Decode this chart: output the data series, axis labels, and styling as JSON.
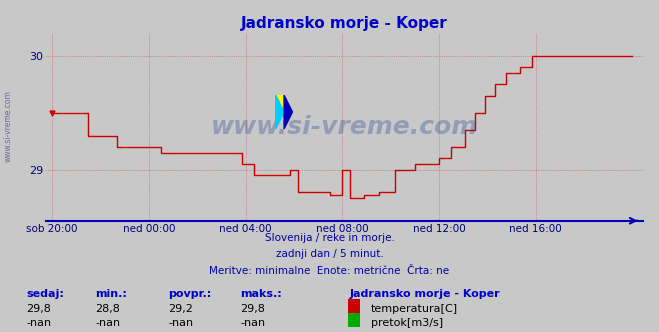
{
  "title": "Jadransko morje - Koper",
  "title_color": "#0000cc",
  "bg_color": "#c8c8c8",
  "plot_bg_color": "#c8c8c8",
  "line_color": "#cc0000",
  "axis_color": "#0000bb",
  "grid_color": "#cc0000",
  "xlabel_color": "#000080",
  "ylim": [
    28.55,
    30.2
  ],
  "xlim": [
    -3,
    293
  ],
  "x_ticks": [
    0,
    48,
    96,
    144,
    192,
    240
  ],
  "xlim_labels": [
    "sob 20:00",
    "ned 00:00",
    "ned 04:00",
    "ned 08:00",
    "ned 12:00",
    "ned 16:00"
  ],
  "yticks": [
    29.0,
    30.0
  ],
  "ytick_labels": [
    "29",
    "30"
  ],
  "watermark": "www.si-vreme.com",
  "watermark_color": "#1a3a8a",
  "watermark_alpha": 0.3,
  "info_line1": "Slovenija / reke in morje.",
  "info_line2": "zadnji dan / 5 minut.",
  "info_line3": "Meritve: minimalne  Enote: metrične  Črta: ne",
  "info_color": "#0000aa",
  "table_headers": [
    "sedaj:",
    "min.:",
    "povpr.:",
    "maks.:"
  ],
  "table_values_temp": [
    "29,8",
    "28,8",
    "29,2",
    "29,8"
  ],
  "table_values_pretok": [
    "-nan",
    "-nan",
    "-nan",
    "-nan"
  ],
  "legend_label1": "temperatura[C]",
  "legend_label2": "pretok[m3/s]",
  "legend_color1": "#cc0000",
  "legend_color2": "#00aa00",
  "station_label": "Jadransko morje - Koper",
  "table_header_color": "#0000cc",
  "table_value_color": "#000000",
  "logo_colors": [
    "#ffff00",
    "#00ccff",
    "#0000bb"
  ],
  "left_watermark": "www.si-vreme.com",
  "left_watermark_color": "#555588"
}
